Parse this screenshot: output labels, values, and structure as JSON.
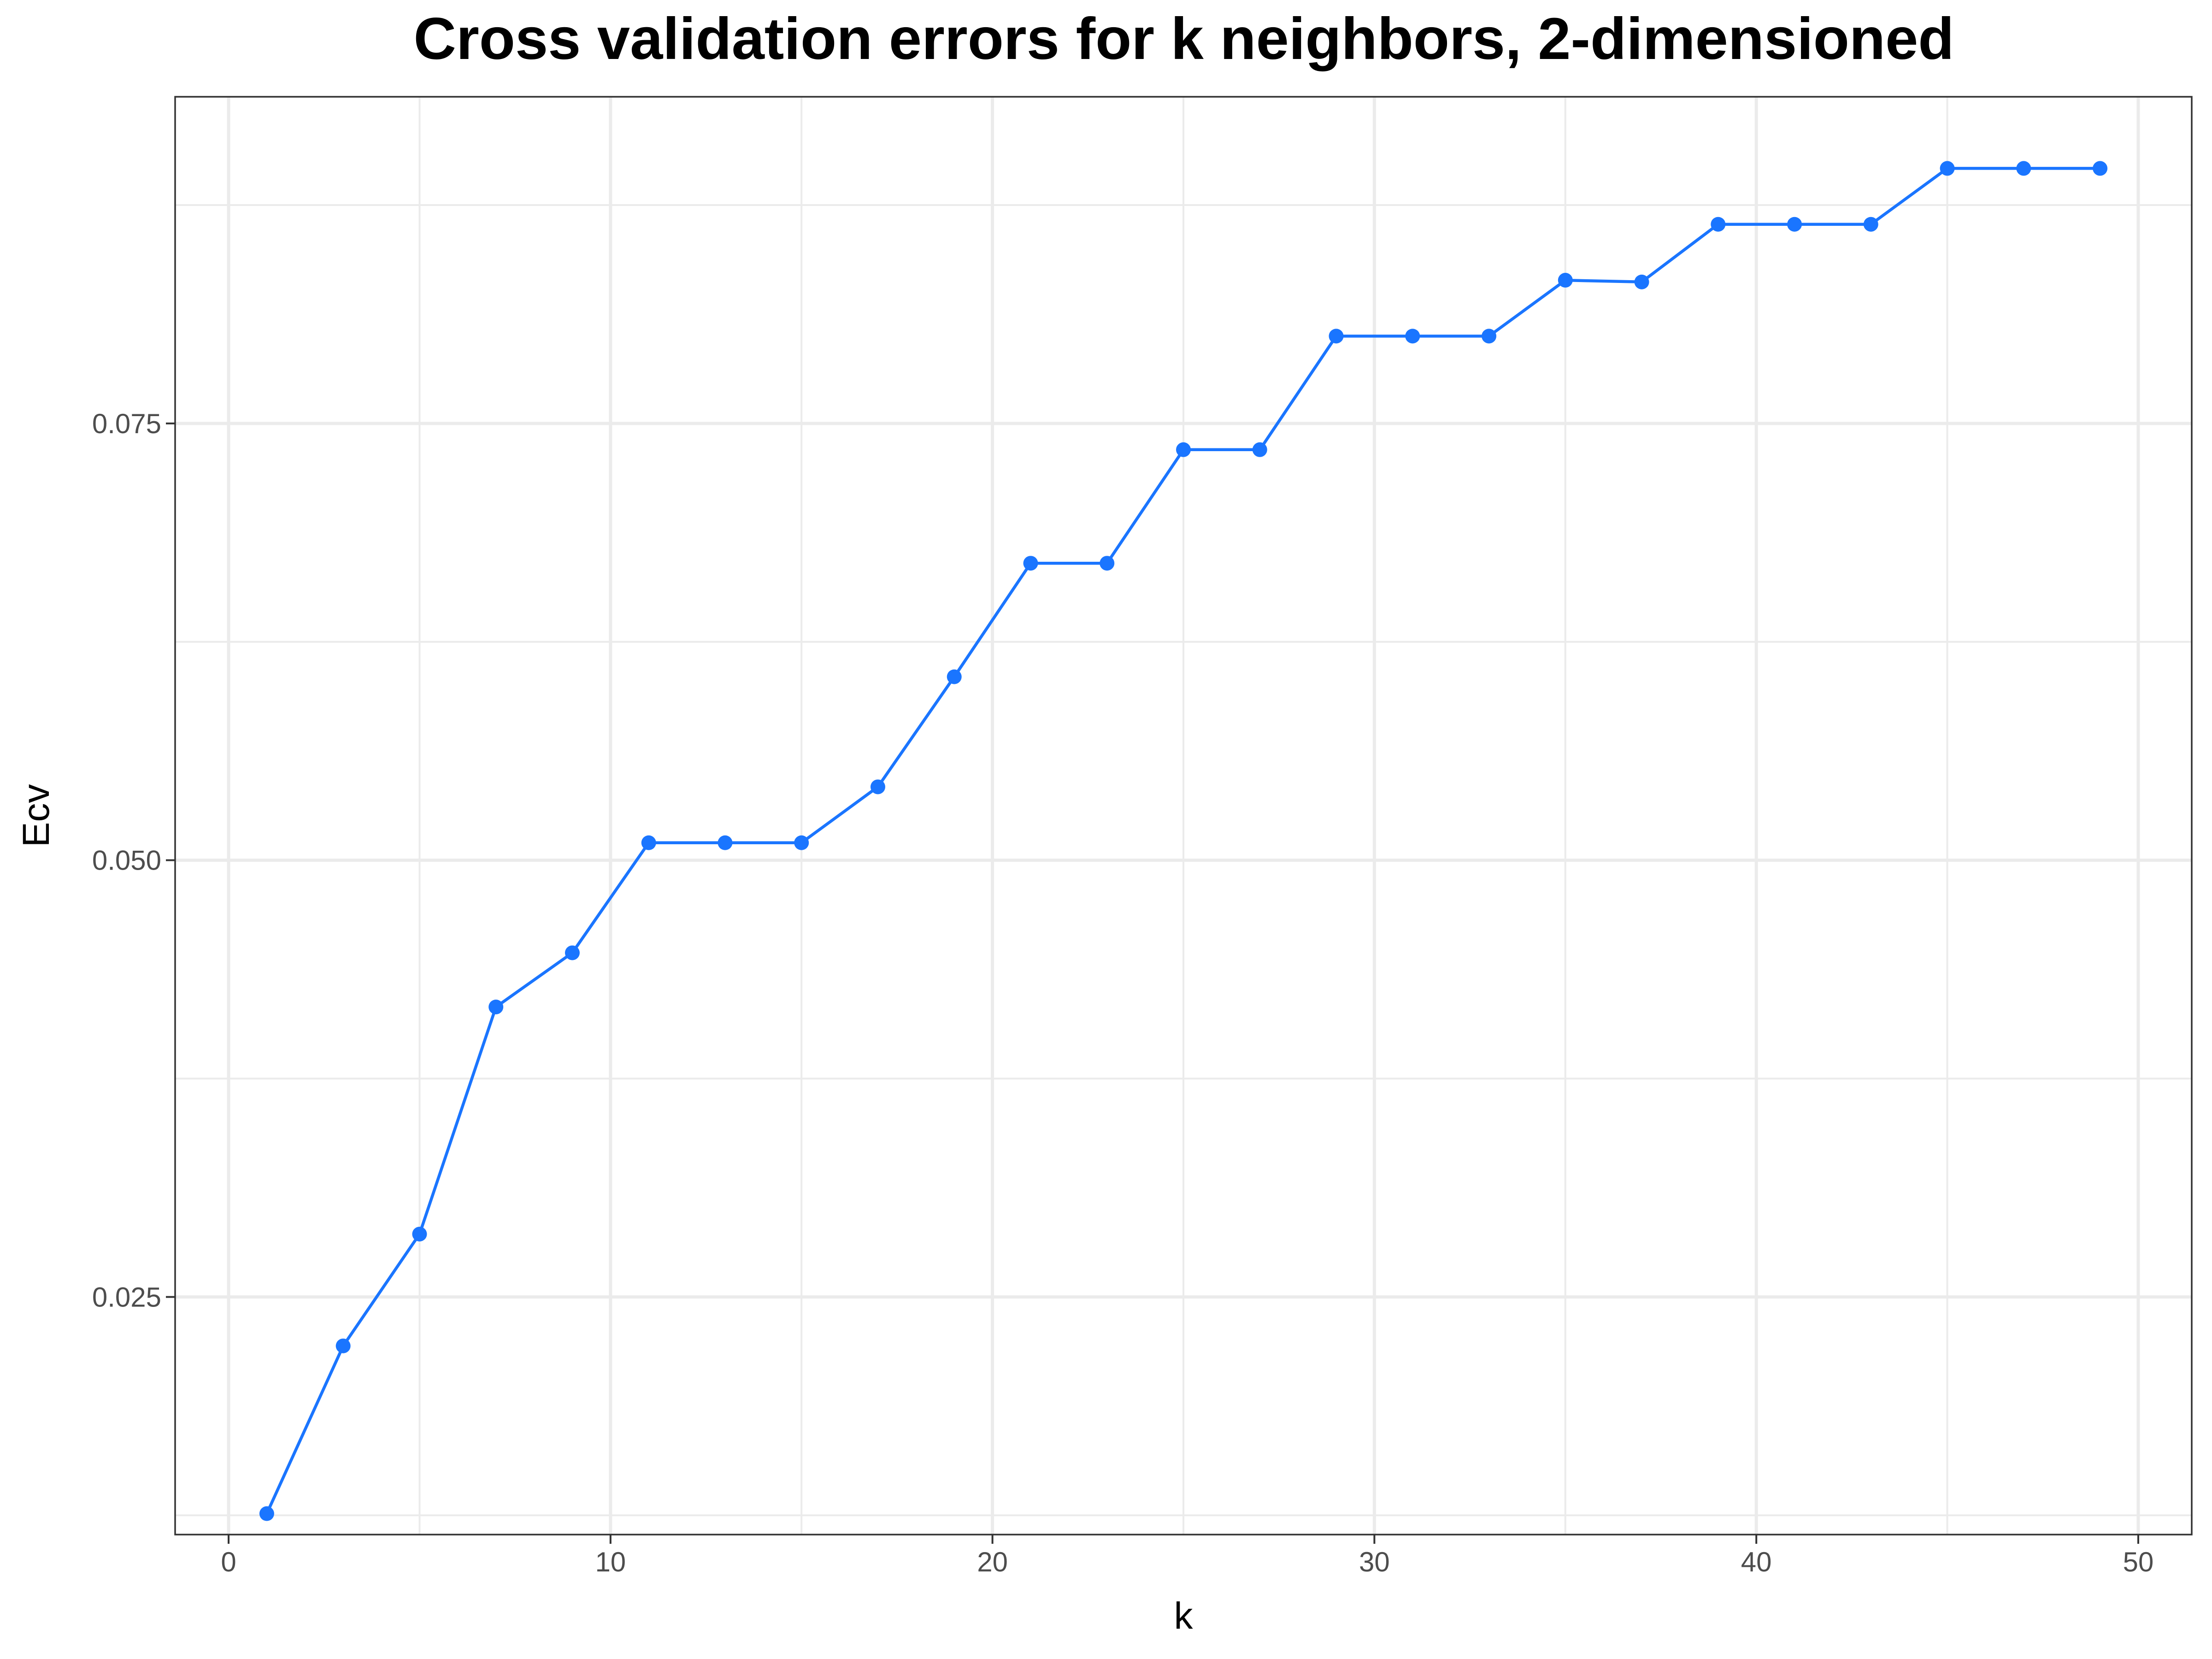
{
  "chart_data": {
    "type": "line",
    "title": "Cross validation errors for k neighbors, 2-dimensioned",
    "xlabel": "k",
    "ylabel": "Ecv",
    "xlim": [
      -1.4,
      51.4
    ],
    "ylim": [
      0.0114,
      0.0937
    ],
    "x_ticks": [
      0,
      10,
      20,
      30,
      40,
      50
    ],
    "x_tick_labels": [
      "0",
      "10",
      "20",
      "30",
      "40",
      "50"
    ],
    "y_ticks": [
      0.025,
      0.05,
      0.075
    ],
    "y_tick_labels": [
      "0.025",
      "0.050",
      "0.075"
    ],
    "grid": true,
    "legend": "none",
    "series": [
      {
        "color": "#1a75ff",
        "x": [
          1,
          3,
          5,
          7,
          9,
          11,
          13,
          15,
          17,
          19,
          21,
          23,
          25,
          27,
          29,
          31,
          33,
          35,
          37,
          39,
          41,
          43,
          45,
          47,
          49
        ],
        "y": [
          0.0126,
          0.0222,
          0.0286,
          0.0416,
          0.0447,
          0.051,
          0.051,
          0.051,
          0.0542,
          0.0605,
          0.067,
          0.067,
          0.0735,
          0.0735,
          0.08,
          0.08,
          0.08,
          0.0832,
          0.0831,
          0.0864,
          0.0864,
          0.0864,
          0.0896,
          0.0896,
          0.0896
        ]
      }
    ]
  }
}
